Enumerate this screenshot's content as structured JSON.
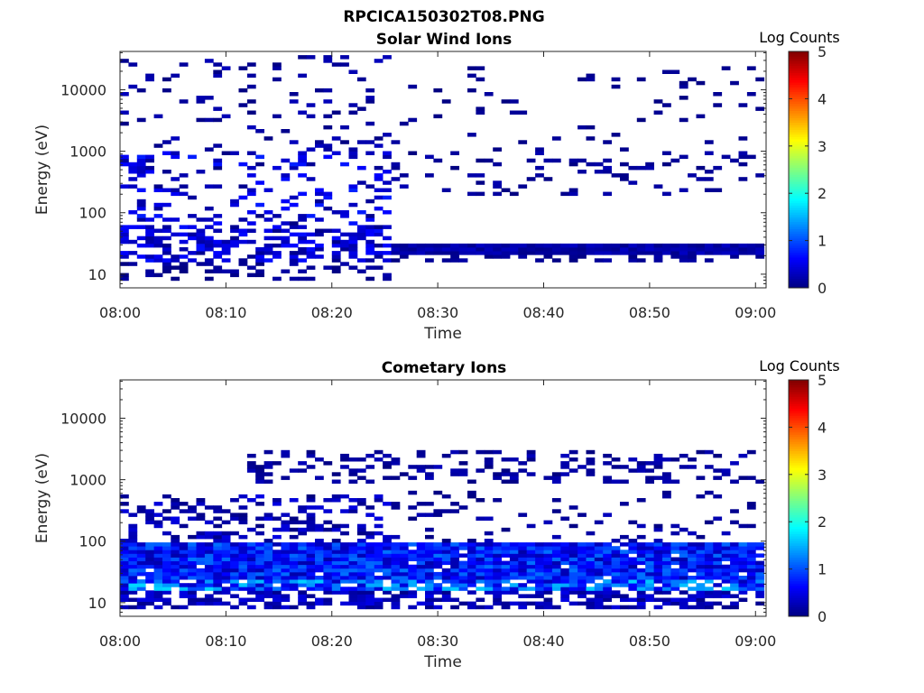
{
  "figure_title": "RPCICA150302T08.PNG",
  "chart_data": [
    {
      "type": "heatmap",
      "title": "Solar Wind Ions",
      "xlabel": "Time",
      "ylabel": "Energy (eV)",
      "x_ticks": [
        "08:00",
        "08:10",
        "08:20",
        "08:30",
        "08:40",
        "08:50",
        "09:00"
      ],
      "xlim_minutes": [
        0,
        61
      ],
      "y_ticks": [
        "10",
        "100",
        "1000",
        "10000"
      ],
      "y_scale": "log",
      "ylim": [
        6,
        42000
      ],
      "colorbar": {
        "label": "Log Counts",
        "ticks": [
          "0",
          "1",
          "2",
          "3",
          "4",
          "5"
        ],
        "range": [
          0,
          5
        ],
        "colormap": "jet"
      },
      "seed": 17,
      "bands": [
        {
          "t": [
            0,
            25.5
          ],
          "e": [
            16,
            60
          ],
          "density": 0.55,
          "v": [
            0.05,
            0.7
          ]
        },
        {
          "t": [
            25.5,
            61
          ],
          "e": [
            22,
            32
          ],
          "density": 1.0,
          "v": [
            0.05,
            0.35
          ]
        },
        {
          "t": [
            25.5,
            61
          ],
          "e": [
            15,
            22
          ],
          "density": 0.4,
          "v": [
            0.0,
            0.2
          ]
        },
        {
          "t": [
            0,
            25.5
          ],
          "e": [
            8,
            16
          ],
          "density": 0.25,
          "v": [
            0.0,
            0.2
          ]
        },
        {
          "t": [
            0,
            25.5
          ],
          "e": [
            60,
            1000
          ],
          "density": 0.2,
          "v": [
            0.0,
            0.8
          ]
        },
        {
          "t": [
            0,
            25.5
          ],
          "e": [
            1000,
            35000
          ],
          "density": 0.1,
          "v": [
            0.0,
            0.3
          ]
        },
        {
          "t": [
            25.5,
            61
          ],
          "e": [
            180,
            1000
          ],
          "density": 0.13,
          "v": [
            0.0,
            0.25
          ]
        },
        {
          "t": [
            25.5,
            61
          ],
          "e": [
            1000,
            25000
          ],
          "density": 0.05,
          "v": [
            0.0,
            0.15
          ]
        },
        {
          "t": [
            0,
            3
          ],
          "e": [
            400,
            900
          ],
          "density": 0.7,
          "v": [
            0.1,
            0.6
          ]
        }
      ]
    },
    {
      "type": "heatmap",
      "title": "Cometary Ions",
      "xlabel": "Time",
      "ylabel": "Energy (eV)",
      "x_ticks": [
        "08:00",
        "08:10",
        "08:20",
        "08:30",
        "08:40",
        "08:50",
        "09:00"
      ],
      "xlim_minutes": [
        0,
        61
      ],
      "y_ticks": [
        "10",
        "100",
        "1000",
        "10000"
      ],
      "y_scale": "log",
      "ylim": [
        6,
        42000
      ],
      "colorbar": {
        "label": "Log Counts",
        "ticks": [
          "0",
          "1",
          "2",
          "3",
          "4",
          "5"
        ],
        "range": [
          0,
          5
        ],
        "colormap": "jet"
      },
      "seed": 91,
      "bands": [
        {
          "t": [
            0,
            61
          ],
          "e": [
            25,
            100
          ],
          "density": 0.95,
          "v": [
            0.2,
            1.2
          ]
        },
        {
          "t": [
            0,
            61
          ],
          "e": [
            16,
            25
          ],
          "density": 0.85,
          "v": [
            0.3,
            1.7
          ]
        },
        {
          "t": [
            0,
            61
          ],
          "e": [
            8,
            16
          ],
          "density": 0.55,
          "v": [
            0.05,
            0.5
          ]
        },
        {
          "t": [
            0,
            25.5
          ],
          "e": [
            100,
            600
          ],
          "density": 0.35,
          "v": [
            0.0,
            0.5
          ]
        },
        {
          "t": [
            25.5,
            61
          ],
          "e": [
            100,
            300
          ],
          "density": 0.15,
          "v": [
            0.0,
            0.3
          ]
        },
        {
          "t": [
            12,
            61
          ],
          "e": [
            900,
            3000
          ],
          "density": 0.3,
          "v": [
            0.0,
            0.3
          ]
        },
        {
          "t": [
            26,
            61
          ],
          "e": [
            300,
            700
          ],
          "density": 0.08,
          "v": [
            0.0,
            0.2
          ]
        }
      ]
    }
  ]
}
